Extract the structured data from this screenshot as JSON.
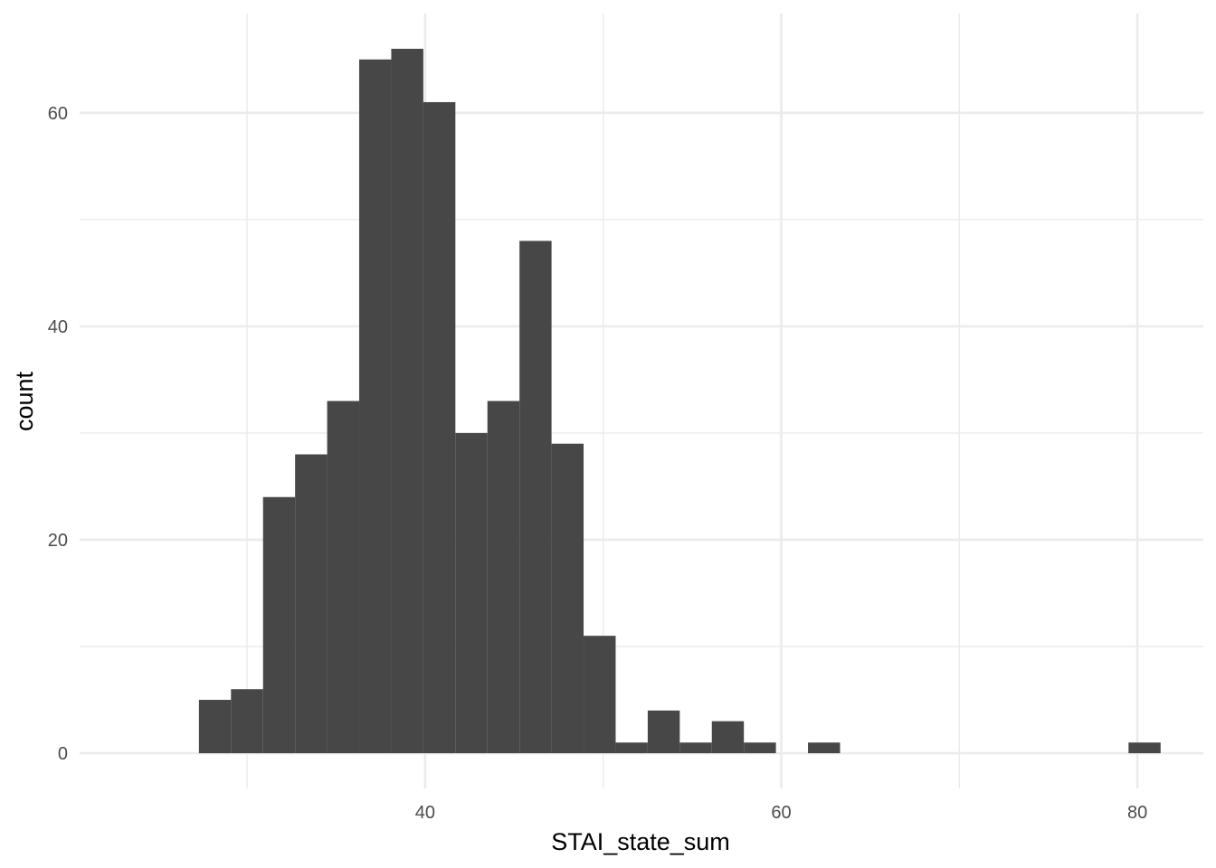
{
  "chart_data": {
    "type": "bar",
    "subtype": "histogram",
    "xlabel": "STAI_state_sum",
    "ylabel": "count",
    "xlim": [
      20.6,
      83.7
    ],
    "ylim": [
      -3.3,
      69.3
    ],
    "x_ticks": [
      40,
      60,
      80
    ],
    "x_tick_labels": [
      "40",
      "60",
      "80"
    ],
    "x_minor_ticks": [
      30,
      50,
      70
    ],
    "y_ticks": [
      0,
      20,
      40,
      60
    ],
    "y_tick_labels": [
      "0",
      "20",
      "40",
      "60"
    ],
    "y_minor_ticks": [
      10,
      30,
      50
    ],
    "grid": true,
    "bar_color": "#474747",
    "grid_color": "#ebebeb",
    "bins": [
      {
        "x_start": 27.3,
        "x_end": 29.1,
        "count": 5
      },
      {
        "x_start": 29.1,
        "x_end": 30.9,
        "count": 6
      },
      {
        "x_start": 30.9,
        "x_end": 32.7,
        "count": 24
      },
      {
        "x_start": 32.7,
        "x_end": 34.5,
        "count": 28
      },
      {
        "x_start": 34.5,
        "x_end": 36.3,
        "count": 33
      },
      {
        "x_start": 36.3,
        "x_end": 38.1,
        "count": 65
      },
      {
        "x_start": 38.1,
        "x_end": 39.9,
        "count": 66
      },
      {
        "x_start": 39.9,
        "x_end": 41.7,
        "count": 61
      },
      {
        "x_start": 41.7,
        "x_end": 43.5,
        "count": 30
      },
      {
        "x_start": 43.5,
        "x_end": 45.3,
        "count": 33
      },
      {
        "x_start": 45.3,
        "x_end": 47.1,
        "count": 48
      },
      {
        "x_start": 47.1,
        "x_end": 48.9,
        "count": 29
      },
      {
        "x_start": 48.9,
        "x_end": 50.7,
        "count": 11
      },
      {
        "x_start": 50.7,
        "x_end": 52.5,
        "count": 1
      },
      {
        "x_start": 52.5,
        "x_end": 54.3,
        "count": 4
      },
      {
        "x_start": 54.3,
        "x_end": 56.1,
        "count": 1
      },
      {
        "x_start": 56.1,
        "x_end": 57.9,
        "count": 3
      },
      {
        "x_start": 57.9,
        "x_end": 59.7,
        "count": 1
      },
      {
        "x_start": 59.7,
        "x_end": 61.5,
        "count": 0
      },
      {
        "x_start": 61.5,
        "x_end": 63.3,
        "count": 1
      },
      {
        "x_start": 63.3,
        "x_end": 65.1,
        "count": 0
      },
      {
        "x_start": 65.1,
        "x_end": 66.9,
        "count": 0
      },
      {
        "x_start": 66.9,
        "x_end": 68.7,
        "count": 0
      },
      {
        "x_start": 68.7,
        "x_end": 70.5,
        "count": 0
      },
      {
        "x_start": 70.5,
        "x_end": 72.3,
        "count": 0
      },
      {
        "x_start": 72.3,
        "x_end": 74.1,
        "count": 0
      },
      {
        "x_start": 74.1,
        "x_end": 75.9,
        "count": 0
      },
      {
        "x_start": 75.9,
        "x_end": 77.7,
        "count": 0
      },
      {
        "x_start": 77.7,
        "x_end": 79.5,
        "count": 0
      },
      {
        "x_start": 79.5,
        "x_end": 81.3,
        "count": 1
      }
    ]
  }
}
